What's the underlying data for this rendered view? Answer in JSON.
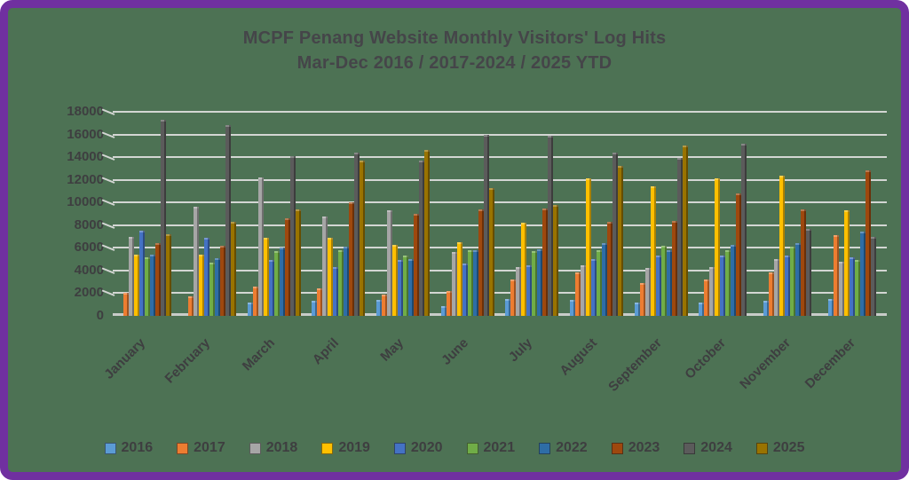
{
  "frame": {
    "border_color": "#7030A0",
    "background_color": "#4D7254"
  },
  "title": {
    "line1": "MCPF Penang Website Monthly Visitors' Log Hits",
    "line2": "Mar-Dec 2016 / 2017-2024 / 2025 YTD"
  },
  "chart_data": {
    "type": "bar",
    "title": "MCPF Penang Website Monthly Visitors' Log Hits",
    "subtitle": "Mar-Dec 2016 / 2017-2024 / 2025 YTD",
    "xlabel": "",
    "ylabel": "",
    "ylim": [
      0,
      18000
    ],
    "ytick_step": 2000,
    "y_tick_labels": [
      "0",
      "2000",
      "4000",
      "6000",
      "8000",
      "10000",
      "12000",
      "14000",
      "16000",
      "18000"
    ],
    "grid": true,
    "legend_position": "bottom",
    "categories": [
      "January",
      "February",
      "March",
      "April",
      "May",
      "June",
      "July",
      "August",
      "September",
      "October",
      "November",
      "December"
    ],
    "series": [
      {
        "name": "2016",
        "color": "#5B9BD5",
        "values": [
          null,
          null,
          1200,
          1300,
          1400,
          900,
          1500,
          1400,
          1200,
          1200,
          1300,
          1500
        ]
      },
      {
        "name": "2017",
        "color": "#ED7D31",
        "values": [
          2000,
          1700,
          2600,
          2400,
          1900,
          2200,
          3200,
          3800,
          2900,
          3200,
          3800,
          7100
        ]
      },
      {
        "name": "2018",
        "color": "#A6A6A6",
        "values": [
          7000,
          9600,
          12200,
          8800,
          9300,
          5600,
          4300,
          4500,
          4200,
          4300,
          5000,
          4800
        ]
      },
      {
        "name": "2019",
        "color": "#FFC000",
        "values": [
          5400,
          5400,
          6900,
          6900,
          6300,
          6500,
          8200,
          12100,
          11400,
          12100,
          12400,
          9300
        ]
      },
      {
        "name": "2020",
        "color": "#4472C4",
        "values": [
          7500,
          6900,
          4900,
          4300,
          4900,
          4600,
          4500,
          5000,
          5300,
          5300,
          5300,
          5200
        ]
      },
      {
        "name": "2021",
        "color": "#70AD47",
        "values": [
          5200,
          4700,
          5700,
          5800,
          5300,
          5800,
          5700,
          5800,
          6200,
          5800,
          6100,
          4900
        ]
      },
      {
        "name": "2022",
        "color": "#2E6DA6",
        "values": [
          5400,
          5100,
          6000,
          6100,
          5000,
          5800,
          5900,
          6400,
          5800,
          6300,
          6400,
          7400
        ]
      },
      {
        "name": "2023",
        "color": "#9E480E",
        "values": [
          6400,
          6200,
          8600,
          10000,
          9000,
          9400,
          9500,
          8300,
          8400,
          10800,
          9400,
          12800
        ]
      },
      {
        "name": "2024",
        "color": "#5B5B5B",
        "values": [
          17300,
          16800,
          14100,
          14400,
          13700,
          16000,
          15900,
          14400,
          13900,
          15200,
          7700,
          7000
        ]
      },
      {
        "name": "2025",
        "color": "#997300",
        "values": [
          7200,
          8300,
          9400,
          13700,
          14600,
          11300,
          9800,
          13200,
          15000,
          null,
          null,
          null
        ]
      }
    ]
  }
}
